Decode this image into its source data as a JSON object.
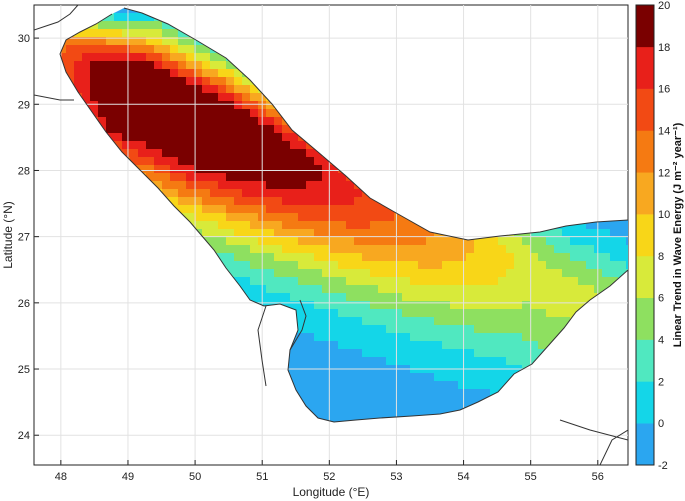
{
  "chart_data": {
    "type": "heatmap",
    "xlabel": "Longitude (°E)",
    "ylabel": "Latitude (°N)",
    "xlim": [
      47.6,
      56.45
    ],
    "ylim": [
      23.55,
      30.5
    ],
    "xticks": [
      "48",
      "49",
      "50",
      "51",
      "52",
      "53",
      "54",
      "55",
      "56"
    ],
    "yticks": [
      "24",
      "25",
      "26",
      "27",
      "28",
      "29",
      "30"
    ],
    "grid": true,
    "colorbar": {
      "label": "Linear Trend in Wave Energy (J m⁻² year⁻¹)",
      "ticks": [
        "-2",
        "0",
        "2",
        "4",
        "6",
        "8",
        "10",
        "12",
        "14",
        "16",
        "18",
        "20"
      ],
      "range": [
        -2,
        20
      ],
      "step": 2,
      "colors": [
        "#2ba6f0",
        "#14d6e8",
        "#50e8c0",
        "#8ee060",
        "#d8ea3a",
        "#f8d618",
        "#f8a820",
        "#f57a12",
        "#f24a14",
        "#e8201a",
        "#b8100c"
      ]
    },
    "colors": {
      "deep_core": "#7a0000",
      "land": "#ffffff",
      "coastline": "#333333",
      "gridline": "#e2e2e2"
    },
    "field": {
      "description_units": "J m-2 year-1",
      "trend_core_center": [
        50.6,
        28.1
      ],
      "trend_max": 20,
      "trend_min": -2
    }
  }
}
